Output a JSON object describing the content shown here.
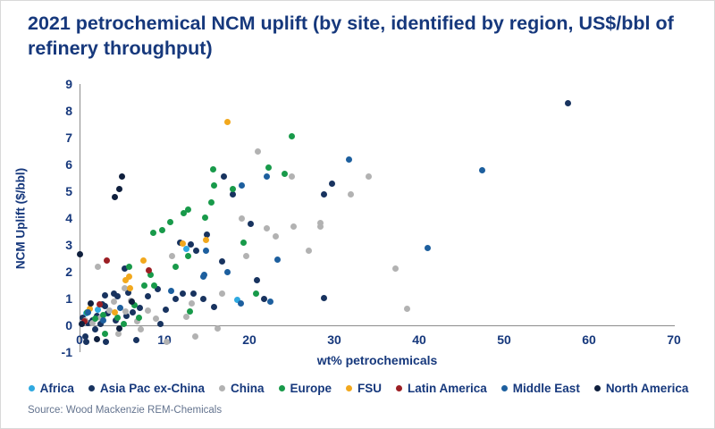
{
  "title": "2021 petrochemical NCM uplift (by site, identified by region, US$/bbl of refinery throughput)",
  "source": "Source: Wood Mackenzie REM-Chemicals",
  "chart_data": {
    "type": "scatter",
    "title": "2021 petrochemical NCM uplift (by site, identified by region, US$/bbl of refinery throughput)",
    "xlabel": "wt% petrochemicals",
    "ylabel": "NCM Uplift ($/bbl)",
    "xlim": [
      0,
      70
    ],
    "ylim": [
      -1,
      9
    ],
    "xticks": [
      0,
      10,
      20,
      30,
      40,
      50,
      60,
      70
    ],
    "yticks": [
      9,
      8,
      7,
      6,
      5,
      4,
      3,
      2,
      1,
      0,
      -1
    ],
    "grid": false,
    "legend_position": "bottom",
    "series": [
      {
        "name": "Africa",
        "color": "#2fa9e0",
        "points": [
          [
            0.8,
            0.45
          ],
          [
            2.2,
            0.6
          ],
          [
            12.6,
            2.85
          ],
          [
            18.6,
            0.95
          ]
        ]
      },
      {
        "name": "Asia Pac ex-China",
        "color": "#18335f",
        "points": [
          [
            57.5,
            8.3
          ],
          [
            17,
            5.55
          ],
          [
            29.7,
            5.3
          ],
          [
            28.8,
            4.9
          ],
          [
            18,
            4.9
          ],
          [
            20.2,
            3.77
          ],
          [
            15,
            3.4
          ],
          [
            11.8,
            3.07
          ],
          [
            13.1,
            3.03
          ],
          [
            13.7,
            2.77
          ],
          [
            16.8,
            2.4
          ],
          [
            5.3,
            2.13
          ],
          [
            28.8,
            1.03
          ],
          [
            20.9,
            1.67
          ],
          [
            21.7,
            0.97
          ],
          [
            12.2,
            1.17
          ],
          [
            13.4,
            1.2
          ],
          [
            14.6,
            0.97
          ],
          [
            15.8,
            0.7
          ],
          [
            3,
            1.13
          ],
          [
            4,
            1.17
          ],
          [
            4.5,
            1.07
          ],
          [
            5.7,
            1.23
          ],
          [
            3,
            0.73
          ],
          [
            11.3,
            1.0
          ],
          [
            0.7,
            -0.43
          ],
          [
            0.8,
            -0.6
          ],
          [
            3.1,
            -0.6
          ],
          [
            1,
            0.1
          ],
          [
            1.5,
            0.2
          ],
          [
            2,
            0.35
          ],
          [
            2.5,
            0.05
          ],
          [
            3.3,
            0.45
          ],
          [
            4.3,
            0.18
          ],
          [
            5.5,
            0.35
          ],
          [
            6.3,
            0.5
          ],
          [
            7.1,
            0.65
          ],
          [
            8.1,
            1.1
          ],
          [
            9.2,
            1.35
          ],
          [
            0.4,
            0.3
          ],
          [
            1.8,
            -0.15
          ],
          [
            2.7,
            0.8
          ],
          [
            6.7,
            -0.55
          ],
          [
            9.5,
            0.05
          ],
          [
            10.2,
            0.6
          ]
        ]
      },
      {
        "name": "China",
        "color": "#b2b2b2",
        "points": [
          [
            21,
            6.5
          ],
          [
            25,
            5.55
          ],
          [
            34,
            5.55
          ],
          [
            31.9,
            4.87
          ],
          [
            19.1,
            4.0
          ],
          [
            25.2,
            3.7
          ],
          [
            28.4,
            3.82
          ],
          [
            28.4,
            3.68
          ],
          [
            22.1,
            3.62
          ],
          [
            23.1,
            3.33
          ],
          [
            27,
            2.79
          ],
          [
            19.6,
            2.6
          ],
          [
            10.9,
            2.57
          ],
          [
            2.2,
            2.2
          ],
          [
            37.2,
            2.13
          ],
          [
            16.8,
            1.2
          ],
          [
            13.2,
            0.83
          ],
          [
            12.6,
            0.33
          ],
          [
            5.3,
            1.4
          ],
          [
            6,
            0.93
          ],
          [
            4.1,
            0.87
          ],
          [
            5.4,
            0.53
          ],
          [
            38.6,
            0.63
          ],
          [
            16.3,
            -0.13
          ],
          [
            13.6,
            -0.43
          ],
          [
            10.3,
            -0.6
          ],
          [
            4.6,
            -0.3
          ],
          [
            1.5,
            0.1
          ],
          [
            2.5,
            0.3
          ],
          [
            3.5,
            0.55
          ],
          [
            0.7,
            0.2
          ],
          [
            6.8,
            0.15
          ],
          [
            8,
            0.55
          ],
          [
            9,
            0.25
          ],
          [
            7.2,
            -0.15
          ]
        ]
      },
      {
        "name": "Europe",
        "color": "#189a4a",
        "points": [
          [
            25,
            7.05
          ],
          [
            22.3,
            5.9
          ],
          [
            24.2,
            5.65
          ],
          [
            15.7,
            5.83
          ],
          [
            15.8,
            5.23
          ],
          [
            18.1,
            5.07
          ],
          [
            15.5,
            4.6
          ],
          [
            12.8,
            4.33
          ],
          [
            12.3,
            4.17
          ],
          [
            14.8,
            4.03
          ],
          [
            10.7,
            3.85
          ],
          [
            9.7,
            3.55
          ],
          [
            8.7,
            3.45
          ],
          [
            19.3,
            3.1
          ],
          [
            12.8,
            2.57
          ],
          [
            11.3,
            2.2
          ],
          [
            5.8,
            2.2
          ],
          [
            8.4,
            1.9
          ],
          [
            7.6,
            1.5
          ],
          [
            8.8,
            1.47
          ],
          [
            20.8,
            1.17
          ],
          [
            13,
            0.53
          ],
          [
            3,
            -0.33
          ],
          [
            1.8,
            0.25
          ],
          [
            2.8,
            0.4
          ],
          [
            4.5,
            0.3
          ],
          [
            6.5,
            0.75
          ],
          [
            0.9,
            0.5
          ],
          [
            5.2,
            0.05
          ],
          [
            7,
            0.3
          ]
        ]
      },
      {
        "name": "FSU",
        "color": "#f2a81d",
        "points": [
          [
            17.4,
            7.6
          ],
          [
            14.9,
            3.2
          ],
          [
            12.2,
            3.05
          ],
          [
            7.5,
            2.43
          ],
          [
            5.8,
            1.82
          ],
          [
            5.4,
            1.67
          ],
          [
            5.9,
            1.4
          ],
          [
            4.2,
            0.5
          ],
          [
            1.2,
            0.62
          ]
        ]
      },
      {
        "name": "Latin America",
        "color": "#9c1f24",
        "points": [
          [
            2.4,
            0.77
          ],
          [
            3.2,
            2.43
          ],
          [
            8.2,
            2.05
          ],
          [
            0.6,
            0.15
          ]
        ]
      },
      {
        "name": "Middle East",
        "color": "#1d5f9e",
        "points": [
          [
            47.4,
            5.77
          ],
          [
            31.7,
            6.2
          ],
          [
            22.1,
            5.55
          ],
          [
            19.1,
            5.23
          ],
          [
            41,
            2.9
          ],
          [
            23.3,
            2.45
          ],
          [
            14.9,
            2.79
          ],
          [
            14.6,
            1.83
          ],
          [
            10.8,
            1.27
          ],
          [
            19,
            0.83
          ],
          [
            22.5,
            0.9
          ],
          [
            14.7,
            1.9
          ],
          [
            17.4,
            2.0
          ],
          [
            1.0,
            0.5
          ],
          [
            2.8,
            0.2
          ],
          [
            4.8,
            0.65
          ]
        ]
      },
      {
        "name": "North America",
        "color": "#0f1f3d",
        "points": [
          [
            0,
            2.65
          ],
          [
            4.7,
            5.1
          ],
          [
            4.2,
            4.77
          ],
          [
            5,
            5.55
          ],
          [
            1.3,
            0.83
          ],
          [
            4.7,
            -0.13
          ],
          [
            0.3,
            0.05
          ],
          [
            2.0,
            -0.5
          ],
          [
            6.2,
            0.9
          ]
        ]
      }
    ]
  }
}
